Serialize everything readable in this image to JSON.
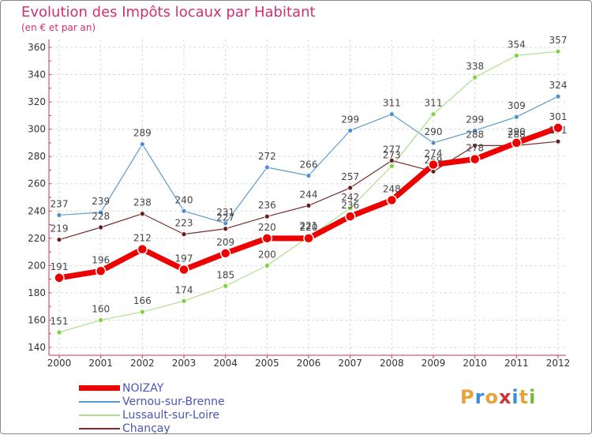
{
  "title": "Evolution des Impôts locaux par Habitant",
  "subtitle": "(en € et par an)",
  "logo": {
    "letters": [
      "P",
      "r",
      "o",
      "x",
      "i",
      "t",
      "i"
    ],
    "colors": [
      "#e8a23a",
      "#3a8fd8",
      "#e8a23a",
      "#cc3333",
      "#3a8fd8",
      "#e8a23a",
      "#7ab83a"
    ]
  },
  "chart_data": {
    "type": "line",
    "title": "Evolution des Impôts locaux par Habitant",
    "subtitle": "(en € et par an)",
    "xlabel": "",
    "ylabel": "",
    "x": [
      "2000",
      "2001",
      "2002",
      "2003",
      "2004",
      "2005",
      "2006",
      "2007",
      "2008",
      "2009",
      "2010",
      "2011",
      "2012"
    ],
    "ylim": [
      140,
      360
    ],
    "yticks": [
      140,
      160,
      180,
      200,
      220,
      240,
      260,
      280,
      300,
      320,
      340,
      360
    ],
    "grid": true,
    "legend_position": "bottom-left",
    "series": [
      {
        "name": "Vernou-sur-Brenne",
        "color": "#5b9bd0",
        "marker": "#4f8fcf",
        "width": 1.2,
        "values": [
          237,
          239,
          289,
          240,
          231,
          272,
          266,
          299,
          311,
          290,
          299,
          309,
          324
        ]
      },
      {
        "name": "Lussault-sur-Loire",
        "color": "#aee08e",
        "marker": "#7ed340",
        "width": 1.2,
        "values": [
          151,
          160,
          166,
          174,
          185,
          200,
          221,
          242,
          273,
          311,
          338,
          354,
          357
        ]
      },
      {
        "name": "Chançay",
        "color": "#7a2b2b",
        "marker": "#6b1b1b",
        "width": 1.2,
        "values": [
          219,
          228,
          238,
          223,
          227,
          236,
          244,
          257,
          277,
          269,
          288,
          288,
          291
        ]
      },
      {
        "name": "NOIZAY",
        "color": "#ee0000",
        "marker": "#ee0000",
        "width": 7,
        "values": [
          191,
          196,
          212,
          197,
          209,
          220,
          220,
          236,
          248,
          274,
          278,
          290,
          301
        ]
      }
    ],
    "legend_order": [
      "NOIZAY",
      "Vernou-sur-Brenne",
      "Lussault-sur-Loire",
      "Chançay"
    ]
  }
}
